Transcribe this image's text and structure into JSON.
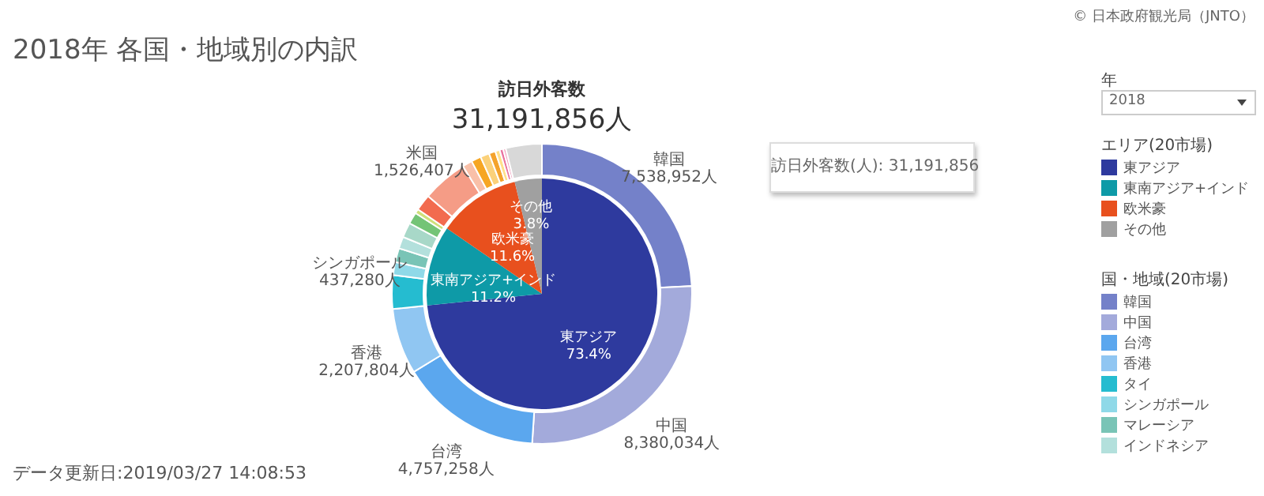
{
  "chart_data": [
    {
      "type": "donut",
      "title": "2018年 各国・地域別の内訳",
      "subtitle": "訪日外客数",
      "legend_title": "国・地域(20市場)",
      "legend": "right",
      "annotations": [
        "31,191,856人",
        "訪日外客数(人): 31,191,856",
        "データ更新日:2019/03/27 14:08:53",
        "© 日本政府観光局（JNTO）",
        "年",
        "2018"
      ],
      "categories": [
        "韓国",
        "中国",
        "台湾",
        "香港",
        "タイ",
        "シンガポール",
        "マレーシア",
        "インドネシア",
        null,
        null,
        null,
        null,
        "米国",
        null,
        null,
        null,
        null,
        null,
        null,
        null,
        null
      ],
      "values": [
        7538952,
        8380034,
        4757258,
        2207804,
        1130000,
        437280,
        470000,
        400000,
        500000,
        390000,
        150000,
        550000,
        1526407,
        330000,
        330000,
        300000,
        220000,
        150000,
        120000,
        90000,
        1210000
      ],
      "value_labels": [
        "7,538,952人",
        "8,380,034人",
        "4,757,258人",
        "2,207,804人",
        null,
        "437,280人",
        null,
        null,
        null,
        null,
        null,
        null,
        "1,526,407人",
        null,
        null,
        null,
        null,
        null,
        null,
        null,
        null
      ],
      "colors": [
        "#7481c9",
        "#a3aadb",
        "#5ba7ee",
        "#90c6f2",
        "#25bcd0",
        "#8fd9e8",
        "#79c4b6",
        "#b3e0dc",
        "#a8d8c8",
        "#74c476",
        "#cfe07a",
        "#f26b4f",
        "#f59c86",
        "#f9c0a8",
        "#f6a623",
        "#fbd17a",
        "#f4a32c",
        "#ffe08a",
        "#e9739e",
        "#f2a5c0",
        "#d8d8d8"
      ]
    },
    {
      "type": "pie",
      "legend_title": "エリア(20市場)",
      "legend": "right",
      "categories": [
        "東アジア",
        "東南アジア+インド",
        "欧米豪",
        "その他"
      ],
      "values": [
        73.4,
        11.2,
        11.6,
        3.8
      ],
      "value_labels": [
        "73.4%",
        "11.2%",
        "11.6%",
        "3.8%"
      ],
      "colors": [
        "#2e3a9e",
        "#0e9aa7",
        "#e8501e",
        "#a0a0a0"
      ]
    }
  ]
}
